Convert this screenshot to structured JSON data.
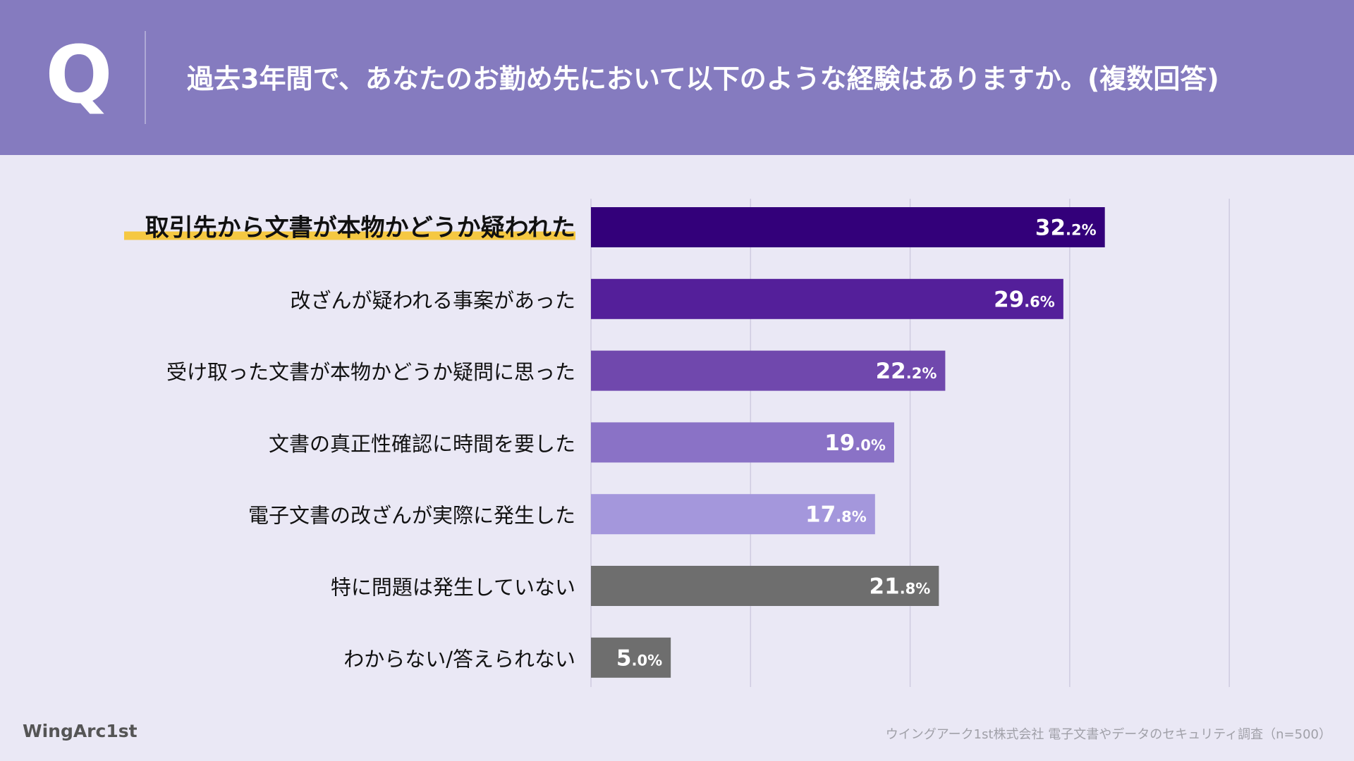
{
  "header": {
    "q_mark": "Q",
    "question": "過去3年間で、あなたのお勤め先において以下のような経験はありますか。(複数回答)"
  },
  "chart_data": {
    "type": "bar",
    "orientation": "horizontal",
    "unit": "%",
    "xlim": [
      0,
      40
    ],
    "grid": true,
    "categories": [
      "取引先から文書が本物かどうか疑われた",
      "改ざんが疑われる事案があった",
      "受け取った文書が本物かどうか疑問に思った",
      "文書の真正性確認に時間を要した",
      "電子文書の改ざんが実際に発生した",
      "特に問題は発生していない",
      "わからない/答えられない"
    ],
    "values": [
      32.2,
      29.6,
      22.2,
      19.0,
      17.8,
      21.8,
      5.0
    ],
    "colors": [
      "#33007a",
      "#541f9a",
      "#7048ad",
      "#8a72c6",
      "#a497dc",
      "#6e6e6e",
      "#6e6e6e"
    ],
    "label_colors": [
      "#ffffff",
      "#ffffff",
      "#ffffff",
      "#ffffff",
      "#ffffff",
      "#ffffff",
      "#ffffff"
    ],
    "highlight_index": 0,
    "highlight_color": "#f5c842"
  },
  "footer": {
    "logo": "WingArc1st",
    "source": "ウイングアーク1st株式会社 電子文書やデータのセキュリティ調査（n=500）"
  }
}
